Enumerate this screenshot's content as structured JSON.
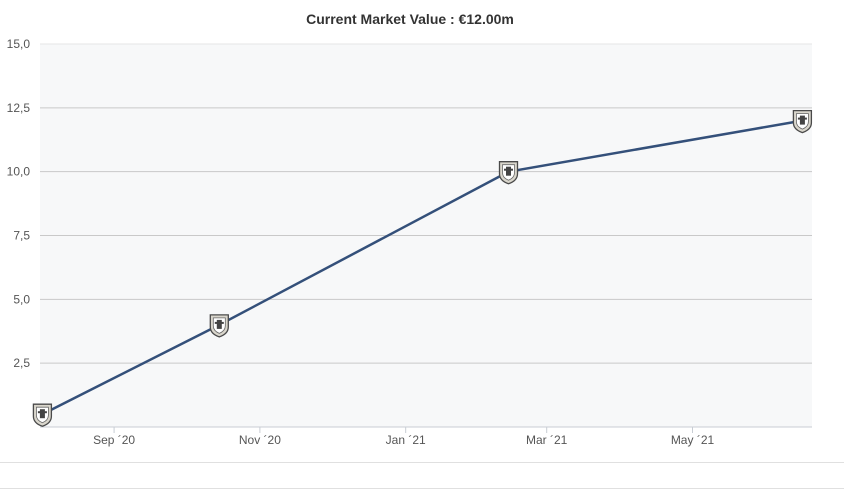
{
  "chart_data": {
    "type": "line",
    "title": "Current Market Value : €12.00m",
    "xlabel": "",
    "ylabel": "",
    "ylim": [
      0,
      15
    ],
    "yticks": [
      "15,0",
      "12,5",
      "10,0",
      "7,5",
      "5,0",
      "2,5"
    ],
    "ytick_values": [
      15,
      12.5,
      10,
      7.5,
      5,
      2.5
    ],
    "xlim": [
      "2020-08-01",
      "2021-06-20"
    ],
    "xticks": [
      "Sep ´20",
      "Nov ´20",
      "Jan ´21",
      "Mar ´21",
      "May ´21"
    ],
    "xtick_dates": [
      "2020-09-01",
      "2020-11-01",
      "2021-01-01",
      "2021-03-01",
      "2021-05-01"
    ],
    "grid": true,
    "series": [
      {
        "points": [
          {
            "x": "2020-08-02",
            "y": 0.5
          },
          {
            "x": "2020-10-15",
            "y": 4.0
          },
          {
            "x": "2021-02-13",
            "y": 10.0
          },
          {
            "x": "2021-06-16",
            "y": 12.0
          }
        ]
      }
    ],
    "line_color": "#34507a",
    "marker_icon": "club-crest-icon"
  }
}
